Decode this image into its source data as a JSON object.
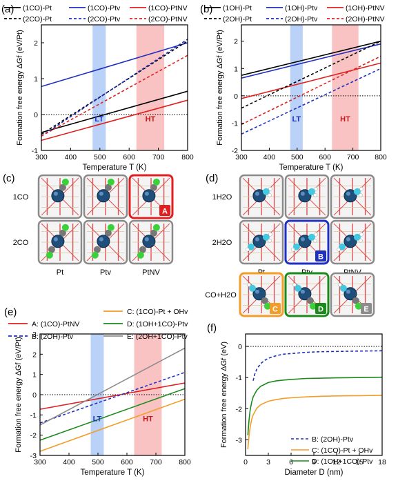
{
  "chart_data": [
    {
      "panel": "(a)",
      "type": "line",
      "xlabel": "Temperature T (K)",
      "ylabel": "Formation free energy ΔGf (eV/Pt)",
      "xlim": [
        300,
        800
      ],
      "ylim": [
        -1,
        2.5
      ],
      "xticks": [
        300,
        400,
        500,
        600,
        700,
        800
      ],
      "yticks": [
        -1,
        0,
        1,
        2
      ],
      "zero_line": true,
      "legend_position": "top",
      "bands": [
        {
          "label": "LT",
          "from": 475,
          "to": 520,
          "color": "#9dbdf5"
        },
        {
          "label": "HT",
          "from": 625,
          "to": 720,
          "color": "#f6a9ab"
        }
      ],
      "series": [
        {
          "name": "(1CO)-Pt",
          "color": "#000000",
          "dashed": false,
          "x": [
            300,
            800
          ],
          "y": [
            -0.5,
            0.65
          ]
        },
        {
          "name": "(1CO)-Ptv",
          "color": "#1f2fbf",
          "dashed": false,
          "x": [
            300,
            800
          ],
          "y": [
            0.78,
            2.0
          ]
        },
        {
          "name": "(1CO)-PtNV",
          "color": "#e02020",
          "dashed": false,
          "x": [
            300,
            800
          ],
          "y": [
            -0.72,
            0.4
          ]
        },
        {
          "name": "(2CO)-Pt",
          "color": "#000000",
          "dashed": true,
          "x": [
            300,
            800
          ],
          "y": [
            -0.55,
            2.05
          ]
        },
        {
          "name": "(2CO)-Ptv",
          "color": "#1f2fbf",
          "dashed": true,
          "x": [
            300,
            800
          ],
          "y": [
            -0.6,
            2.1
          ]
        },
        {
          "name": "(2CO)-PtNV",
          "color": "#e02020",
          "dashed": true,
          "x": [
            300,
            800
          ],
          "y": [
            -0.6,
            1.65
          ]
        }
      ]
    },
    {
      "panel": "(b)",
      "type": "line",
      "xlabel": "Temperature T (K)",
      "ylabel": "Formation free energy ΔGf (eV/Pt)",
      "xlim": [
        300,
        800
      ],
      "ylim": [
        -2,
        2.6
      ],
      "xticks": [
        300,
        400,
        500,
        600,
        700,
        800
      ],
      "yticks": [
        -2,
        -1,
        0,
        1,
        2
      ],
      "zero_line": true,
      "legend_position": "top",
      "bands": [
        {
          "label": "LT",
          "from": 475,
          "to": 520,
          "color": "#9dbdf5"
        },
        {
          "label": "HT",
          "from": 625,
          "to": 720,
          "color": "#f6a9ab"
        }
      ],
      "series": [
        {
          "name": "(1OH)-Pt",
          "color": "#000000",
          "dashed": false,
          "x": [
            300,
            800
          ],
          "y": [
            0.75,
            2.0
          ]
        },
        {
          "name": "(1OH)-Ptv",
          "color": "#1f2fbf",
          "dashed": false,
          "x": [
            300,
            800
          ],
          "y": [
            0.65,
            1.9
          ]
        },
        {
          "name": "(1OH)-PtNV",
          "color": "#e02020",
          "dashed": false,
          "x": [
            300,
            800
          ],
          "y": [
            -0.1,
            1.2
          ]
        },
        {
          "name": "(2OH)-Pt",
          "color": "#000000",
          "dashed": true,
          "x": [
            300,
            800
          ],
          "y": [
            -0.45,
            2.0
          ]
        },
        {
          "name": "(2OH)-Ptv",
          "color": "#1f2fbf",
          "dashed": true,
          "x": [
            300,
            800
          ],
          "y": [
            -1.4,
            1.0
          ]
        },
        {
          "name": "(2OH)-PtNV",
          "color": "#e02020",
          "dashed": true,
          "x": [
            300,
            800
          ],
          "y": [
            -1.05,
            1.45
          ]
        }
      ]
    },
    {
      "panel": "(e)",
      "type": "line",
      "xlabel": "Temperature T (K)",
      "ylabel": "Formation free energy ΔGf (eV/Pt)",
      "xlim": [
        300,
        800
      ],
      "ylim": [
        -3,
        3
      ],
      "xticks": [
        300,
        400,
        500,
        600,
        700,
        800
      ],
      "yticks": [
        -3,
        -2,
        -1,
        0,
        1,
        2,
        3
      ],
      "zero_line": true,
      "legend_position": "top",
      "bands": [
        {
          "label": "LT",
          "from": 475,
          "to": 520,
          "color": "#9dbdf5"
        },
        {
          "label": "HT",
          "from": 625,
          "to": 720,
          "color": "#f6a9ab"
        }
      ],
      "series": [
        {
          "name": "A: (1CO)-PtNV",
          "color": "#e02020",
          "dashed": false,
          "x": [
            300,
            800
          ],
          "y": [
            -0.72,
            0.58
          ]
        },
        {
          "name": "B: (2OH)-Ptv",
          "color": "#1f2fbf",
          "dashed": true,
          "x": [
            300,
            800
          ],
          "y": [
            -1.4,
            1.1
          ]
        },
        {
          "name": "C: (1CO)-Pt + OHv",
          "color": "#f39c28",
          "dashed": false,
          "x": [
            300,
            800
          ],
          "y": [
            -2.8,
            -0.22
          ]
        },
        {
          "name": "D: (1OH+1CO)-Ptv",
          "color": "#1a8a1a",
          "dashed": false,
          "x": [
            300,
            800
          ],
          "y": [
            -2.25,
            0.3
          ]
        },
        {
          "name": "E: (2OH+1CO)-Ptv",
          "color": "#8c8c8c",
          "dashed": false,
          "x": [
            300,
            800
          ],
          "y": [
            -1.5,
            2.3
          ]
        }
      ]
    },
    {
      "panel": "(f)",
      "type": "line",
      "xlabel": "Diameter D (nm)",
      "ylabel": "Formation free energy ΔGf (eV)",
      "xlim": [
        0,
        18
      ],
      "ylim": [
        -3.5,
        0.4
      ],
      "xticks": [
        0,
        3,
        6,
        9,
        12,
        15,
        18
      ],
      "yticks": [
        -3,
        -2,
        -1,
        0
      ],
      "zero_line": true,
      "legend_position": "bottom-right",
      "series": [
        {
          "name": "B: (2OH)-Ptv",
          "color": "#1f2fbf",
          "dashed": true,
          "x": [
            1.0,
            1.2,
            1.5,
            2,
            2.5,
            3,
            4,
            5,
            6,
            8,
            10,
            12,
            15,
            18
          ],
          "y": [
            -1.1,
            -0.9,
            -0.72,
            -0.55,
            -0.45,
            -0.38,
            -0.3,
            -0.25,
            -0.23,
            -0.19,
            -0.17,
            -0.16,
            -0.15,
            -0.14
          ]
        },
        {
          "name": "C: (1CO)-Pt + OHv",
          "color": "#f39c28",
          "dashed": false,
          "x": [
            0.3,
            0.45,
            0.6,
            0.8,
            1.0,
            1.5,
            2,
            3,
            4,
            5,
            6,
            8,
            10,
            12,
            15,
            18
          ],
          "y": [
            -3.3,
            -2.9,
            -2.6,
            -2.35,
            -2.2,
            -1.98,
            -1.87,
            -1.76,
            -1.71,
            -1.67,
            -1.65,
            -1.62,
            -1.6,
            -1.59,
            -1.58,
            -1.57
          ]
        },
        {
          "name": "D: (1OH+1CO)-Ptv",
          "color": "#1a8a1a",
          "dashed": false,
          "x": [
            0.3,
            0.45,
            0.6,
            0.8,
            1.0,
            1.5,
            2,
            3,
            4,
            5,
            6,
            8,
            10,
            12,
            15,
            18
          ],
          "y": [
            -2.85,
            -2.4,
            -2.05,
            -1.8,
            -1.62,
            -1.4,
            -1.28,
            -1.16,
            -1.11,
            -1.08,
            -1.06,
            -1.03,
            -1.02,
            -1.01,
            -1.0,
            -0.99
          ]
        }
      ]
    }
  ],
  "panels": {
    "a": {
      "label": "(a)"
    },
    "b": {
      "label": "(b)"
    },
    "c": {
      "label": "(c)",
      "rows": [
        "1CO",
        "2CO"
      ],
      "cols": [
        "Pt",
        "Ptv",
        "PtNV"
      ],
      "tags": [
        "A"
      ]
    },
    "d": {
      "label": "(d)",
      "rows": [
        "1H2O",
        "2H2O",
        "CO+H2O"
      ],
      "cols": [
        "Pt",
        "Ptv",
        "PtNV"
      ],
      "tags": [
        "B",
        "C",
        "D",
        "E"
      ]
    },
    "e": {
      "label": "(e)"
    },
    "f": {
      "label": "(f)"
    }
  },
  "band_labels": {
    "lt": "LT",
    "ht": "HT"
  },
  "colors": {
    "black": "#000000",
    "blue": "#1f2fbf",
    "red": "#e02020",
    "orange": "#f39c28",
    "green": "#1a8a1a",
    "gray": "#8c8c8c",
    "lt_band": "#9dbdf5",
    "ht_band": "#f6a9ab"
  }
}
